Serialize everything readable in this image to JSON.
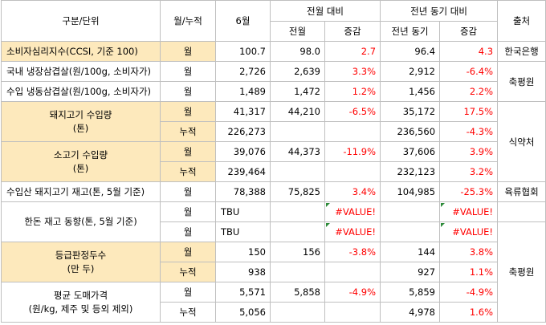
{
  "header": {
    "category": "구분/단위",
    "period": "월/누적",
    "june": "6월",
    "prev_month_group": "전월 대비",
    "prev_month": "전월",
    "change": "증감",
    "yoy_group": "전년 동기 대비",
    "prev_year": "전년 동기",
    "change2": "증감",
    "source": "출처"
  },
  "rows": [
    {
      "category": "소비자심리지수(CCSI, 기준 100)",
      "period": "월",
      "june": "100.7",
      "prev_month": "98.0",
      "chg_m": "2.7",
      "prev_year": "96.4",
      "chg_y": "4.3",
      "source": "한국은행"
    },
    {
      "category": "국내 냉장삼겹살(원/100g, 소비자가)",
      "period": "월",
      "june": "2,726",
      "prev_month": "2,639",
      "chg_m": "3.3%",
      "prev_year": "2,912",
      "chg_y": "-6.4%",
      "source": "축평원"
    },
    {
      "category": "수입 냉동삼겹살(원/100g, 소비자가)",
      "period": "월",
      "june": "1,489",
      "prev_month": "1,472",
      "chg_m": "1.2%",
      "prev_year": "1,456",
      "chg_y": "2.2%"
    },
    {
      "category_line1": "돼지고기 수입량",
      "category_line2": "(톤)",
      "period": "월",
      "june": "41,317",
      "prev_month": "44,210",
      "chg_m": "-6.5%",
      "prev_year": "35,172",
      "chg_y": "17.5%",
      "source": "식약처"
    },
    {
      "period": "누적",
      "june": "226,273",
      "prev_month": "",
      "chg_m": "",
      "prev_year": "236,560",
      "chg_y": "-4.3%"
    },
    {
      "category_line1": "소고기 수입량",
      "category_line2": "(톤)",
      "period": "월",
      "june": "39,076",
      "prev_month": "44,373",
      "chg_m": "-11.9%",
      "prev_year": "37,606",
      "chg_y": "3.9%"
    },
    {
      "period": "누적",
      "june": "239,464",
      "prev_month": "",
      "chg_m": "",
      "prev_year": "232,123",
      "chg_y": "3.2%"
    },
    {
      "category": "수입산 돼지고기 재고(톤, 5월 기준)",
      "period": "월",
      "june": "78,388",
      "prev_month": "75,825",
      "chg_m": "3.4%",
      "prev_year": "104,985",
      "chg_y": "-25.3%",
      "source": "육류협회"
    },
    {
      "category": "한돈 재고 동향(톤, 5월 기준)",
      "period": "월",
      "june": "TBU",
      "prev_month": "",
      "chg_m": "#VALUE!",
      "prev_year": "",
      "chg_y": "#VALUE!"
    },
    {
      "period": "월",
      "june": "TBU",
      "prev_month": "",
      "chg_m": "#VALUE!",
      "prev_year": "",
      "chg_y": "#VALUE!"
    },
    {
      "category_line1": "등급판정두수",
      "category_line2": "(만 두)",
      "period": "월",
      "june": "150",
      "prev_month": "156",
      "chg_m": "-3.8%",
      "prev_year": "144",
      "chg_y": "3.8%",
      "source": "축평원"
    },
    {
      "period": "누적",
      "june": "938",
      "prev_month": "",
      "chg_m": "",
      "prev_year": "927",
      "chg_y": "1.1%"
    },
    {
      "category_line1": "평균 도매가격",
      "category_line2": "(원/kg, 제주 및 등외 제외)",
      "period": "월",
      "june": "5,571",
      "prev_month": "5,858",
      "chg_m": "-4.9%",
      "prev_year": "5,859",
      "chg_y": "-4.9%"
    },
    {
      "period": "누적",
      "june": "5,056",
      "prev_month": "",
      "chg_m": "",
      "prev_year": "4,978",
      "chg_y": "1.6%"
    }
  ],
  "colors": {
    "highlight": "#fde9bc",
    "negative_text": "#ff0000",
    "border": "#bfbfbf",
    "error_flag": "#2e8b3a"
  }
}
